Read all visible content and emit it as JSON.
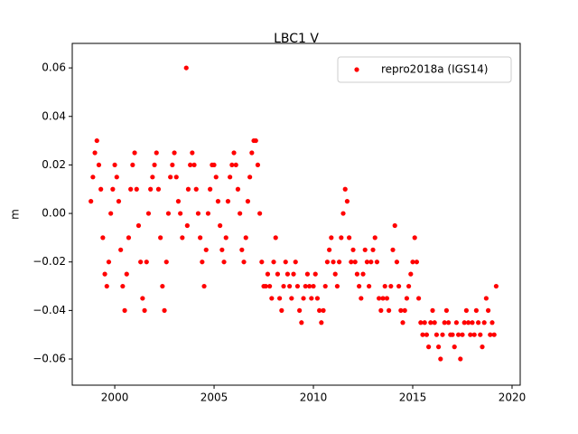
{
  "chart_data": {
    "type": "scatter",
    "title": "LBC1 V",
    "y_label": "m",
    "xlim": [
      1997.86,
      2020.41
    ],
    "ylim": [
      -0.0708,
      0.0701
    ],
    "xticks": [
      2000,
      2005,
      2010,
      2015,
      2020
    ],
    "yticks": [
      {
        "value": -0.06,
        "label": "−0.06"
      },
      {
        "value": -0.04,
        "label": "−0.04"
      },
      {
        "value": -0.02,
        "label": "−0.02"
      },
      {
        "value": 0,
        "label": "0.00"
      },
      {
        "value": 0.02,
        "label": "0.02"
      },
      {
        "value": 0.04,
        "label": "0.04"
      },
      {
        "value": 0.06,
        "label": "0.06"
      }
    ],
    "legend_position": "upper right",
    "series": [
      {
        "name": "repro2018a (IGS14)",
        "color": "#ff0000",
        "x": [
          1998.8,
          1998.9,
          1999.0,
          1999.1,
          1999.2,
          1999.3,
          1999.4,
          1999.5,
          1999.6,
          1999.7,
          1999.8,
          1999.9,
          2000.0,
          2000.1,
          2000.2,
          2000.3,
          2000.4,
          2000.5,
          2000.6,
          2000.7,
          2000.8,
          2000.9,
          2001.0,
          2001.1,
          2001.2,
          2001.3,
          2001.4,
          2001.5,
          2001.6,
          2001.7,
          2001.8,
          2001.9,
          2002.0,
          2002.1,
          2002.2,
          2002.3,
          2002.4,
          2002.5,
          2002.6,
          2002.7,
          2002.8,
          2002.9,
          2003.0,
          2003.1,
          2003.2,
          2003.3,
          2003.4,
          2003.6,
          2003.65,
          2003.7,
          2003.8,
          2003.9,
          2004.0,
          2004.1,
          2004.2,
          2004.3,
          2004.4,
          2004.5,
          2004.6,
          2004.7,
          2004.8,
          2004.9,
          2005.0,
          2005.1,
          2005.2,
          2005.3,
          2005.4,
          2005.5,
          2005.6,
          2005.7,
          2005.8,
          2005.9,
          2006.0,
          2006.1,
          2006.2,
          2006.3,
          2006.4,
          2006.5,
          2006.6,
          2006.7,
          2006.8,
          2006.9,
          2007.0,
          2007.1,
          2007.2,
          2007.3,
          2007.4,
          2007.5,
          2007.6,
          2007.7,
          2007.8,
          2007.9,
          2008.0,
          2008.1,
          2008.2,
          2008.3,
          2008.4,
          2008.5,
          2008.6,
          2008.7,
          2008.8,
          2008.9,
          2009.0,
          2009.1,
          2009.2,
          2009.3,
          2009.4,
          2009.5,
          2009.6,
          2009.7,
          2009.8,
          2009.9,
          2010.0,
          2010.1,
          2010.2,
          2010.3,
          2010.4,
          2010.5,
          2010.6,
          2010.7,
          2010.8,
          2010.9,
          2011.0,
          2011.1,
          2011.2,
          2011.3,
          2011.4,
          2011.5,
          2011.6,
          2011.7,
          2011.8,
          2011.9,
          2012.0,
          2012.1,
          2012.2,
          2012.3,
          2012.4,
          2012.5,
          2012.6,
          2012.7,
          2012.8,
          2012.9,
          2013.0,
          2013.1,
          2013.2,
          2013.3,
          2013.4,
          2013.5,
          2013.6,
          2013.7,
          2013.8,
          2013.9,
          2014.0,
          2014.1,
          2014.2,
          2014.3,
          2014.4,
          2014.5,
          2014.6,
          2014.7,
          2014.8,
          2014.9,
          2015.0,
          2015.1,
          2015.2,
          2015.3,
          2015.4,
          2015.5,
          2015.6,
          2015.7,
          2015.8,
          2015.9,
          2016.0,
          2016.1,
          2016.2,
          2016.3,
          2016.4,
          2016.5,
          2016.6,
          2016.7,
          2016.8,
          2016.9,
          2017.0,
          2017.1,
          2017.2,
          2017.3,
          2017.4,
          2017.5,
          2017.6,
          2017.7,
          2017.8,
          2017.9,
          2018.0,
          2018.1,
          2018.2,
          2018.3,
          2018.4,
          2018.5,
          2018.6,
          2018.7,
          2018.8,
          2018.9,
          2019.0,
          2019.1,
          2019.2
        ],
        "values": [
          0.005,
          0.015,
          0.025,
          0.03,
          0.02,
          0.01,
          -0.01,
          -0.025,
          -0.03,
          -0.02,
          0.0,
          0.01,
          0.02,
          0.015,
          0.005,
          -0.015,
          -0.03,
          -0.04,
          -0.025,
          -0.01,
          0.01,
          0.02,
          0.025,
          0.01,
          -0.005,
          -0.02,
          -0.035,
          -0.04,
          -0.02,
          0.0,
          0.01,
          0.015,
          0.02,
          0.025,
          0.01,
          -0.01,
          -0.03,
          -0.04,
          -0.02,
          0.0,
          0.015,
          0.02,
          0.025,
          0.015,
          0.005,
          0.0,
          -0.01,
          0.06,
          -0.005,
          0.01,
          0.02,
          0.025,
          0.02,
          0.01,
          0.0,
          -0.01,
          -0.02,
          -0.03,
          -0.015,
          0.0,
          0.01,
          0.02,
          0.02,
          0.015,
          0.005,
          -0.005,
          -0.015,
          -0.02,
          -0.01,
          0.005,
          0.015,
          0.02,
          0.025,
          0.02,
          0.01,
          0.0,
          -0.015,
          -0.02,
          -0.01,
          0.005,
          0.015,
          0.025,
          0.03,
          0.03,
          0.02,
          0.0,
          -0.02,
          -0.03,
          -0.03,
          -0.025,
          -0.03,
          -0.035,
          -0.02,
          -0.01,
          -0.025,
          -0.035,
          -0.04,
          -0.03,
          -0.02,
          -0.025,
          -0.03,
          -0.035,
          -0.025,
          -0.02,
          -0.03,
          -0.04,
          -0.045,
          -0.035,
          -0.03,
          -0.025,
          -0.03,
          -0.035,
          -0.03,
          -0.025,
          -0.035,
          -0.04,
          -0.045,
          -0.04,
          -0.03,
          -0.02,
          -0.015,
          -0.01,
          -0.02,
          -0.025,
          -0.03,
          -0.02,
          -0.01,
          0.0,
          0.01,
          0.005,
          -0.01,
          -0.02,
          -0.015,
          -0.02,
          -0.025,
          -0.03,
          -0.035,
          -0.025,
          -0.015,
          -0.02,
          -0.03,
          -0.02,
          -0.015,
          -0.01,
          -0.02,
          -0.035,
          -0.04,
          -0.035,
          -0.03,
          -0.035,
          -0.04,
          -0.03,
          -0.015,
          -0.005,
          -0.02,
          -0.03,
          -0.04,
          -0.045,
          -0.04,
          -0.035,
          -0.03,
          -0.025,
          -0.02,
          -0.01,
          -0.02,
          -0.035,
          -0.045,
          -0.05,
          -0.045,
          -0.05,
          -0.055,
          -0.045,
          -0.04,
          -0.045,
          -0.05,
          -0.055,
          -0.06,
          -0.05,
          -0.045,
          -0.04,
          -0.045,
          -0.05,
          -0.05,
          -0.055,
          -0.045,
          -0.05,
          -0.06,
          -0.05,
          -0.045,
          -0.04,
          -0.045,
          -0.05,
          -0.045,
          -0.05,
          -0.04,
          -0.045,
          -0.05,
          -0.055,
          -0.045,
          -0.035,
          -0.04,
          -0.05,
          -0.045,
          -0.05,
          -0.03
        ]
      }
    ]
  }
}
